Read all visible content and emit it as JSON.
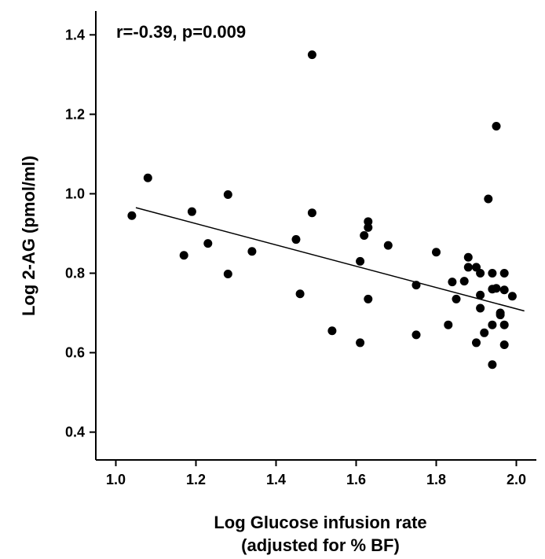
{
  "chart_data": {
    "type": "scatter",
    "annotation": "r=-0.39, p=0.009",
    "xlabel_line1": "Log Glucose infusion rate",
    "xlabel_line2": "(adjusted for % BF)",
    "ylabel": "Log 2-AG (pmol/ml)",
    "xlim": [
      0.95,
      2.05
    ],
    "ylim": [
      0.33,
      1.46
    ],
    "x_ticks": [
      {
        "value": 1.0,
        "label": "1.0"
      },
      {
        "value": 1.2,
        "label": "1.2"
      },
      {
        "value": 1.4,
        "label": "1.4"
      },
      {
        "value": 1.6,
        "label": "1.6"
      },
      {
        "value": 1.8,
        "label": "1.8"
      },
      {
        "value": 2.0,
        "label": "2.0"
      }
    ],
    "y_ticks": [
      {
        "value": 0.4,
        "label": "0.4"
      },
      {
        "value": 0.6,
        "label": "0.6"
      },
      {
        "value": 0.8,
        "label": "0.8"
      },
      {
        "value": 1.0,
        "label": "1.0"
      },
      {
        "value": 1.2,
        "label": "1.2"
      },
      {
        "value": 1.4,
        "label": "1.4"
      }
    ],
    "grid": false,
    "trendline": {
      "x": [
        1.05,
        2.02
      ],
      "y": [
        0.965,
        0.705
      ]
    },
    "points": [
      {
        "x": 1.04,
        "y": 0.945
      },
      {
        "x": 1.08,
        "y": 1.04
      },
      {
        "x": 1.17,
        "y": 0.845
      },
      {
        "x": 1.19,
        "y": 0.955
      },
      {
        "x": 1.23,
        "y": 0.875
      },
      {
        "x": 1.28,
        "y": 0.998
      },
      {
        "x": 1.28,
        "y": 0.798
      },
      {
        "x": 1.34,
        "y": 0.855
      },
      {
        "x": 1.45,
        "y": 0.885
      },
      {
        "x": 1.46,
        "y": 0.748
      },
      {
        "x": 1.49,
        "y": 1.35
      },
      {
        "x": 1.49,
        "y": 0.952
      },
      {
        "x": 1.54,
        "y": 0.655
      },
      {
        "x": 1.61,
        "y": 0.625
      },
      {
        "x": 1.61,
        "y": 0.83
      },
      {
        "x": 1.62,
        "y": 0.895
      },
      {
        "x": 1.63,
        "y": 0.915
      },
      {
        "x": 1.63,
        "y": 0.93
      },
      {
        "x": 1.63,
        "y": 0.735
      },
      {
        "x": 1.68,
        "y": 0.87
      },
      {
        "x": 1.75,
        "y": 0.77
      },
      {
        "x": 1.75,
        "y": 0.645
      },
      {
        "x": 1.8,
        "y": 0.853
      },
      {
        "x": 1.83,
        "y": 0.67
      },
      {
        "x": 1.84,
        "y": 0.778
      },
      {
        "x": 1.85,
        "y": 0.735
      },
      {
        "x": 1.87,
        "y": 0.78
      },
      {
        "x": 1.88,
        "y": 0.84
      },
      {
        "x": 1.88,
        "y": 0.815
      },
      {
        "x": 1.9,
        "y": 0.815
      },
      {
        "x": 1.9,
        "y": 0.625
      },
      {
        "x": 1.91,
        "y": 0.8
      },
      {
        "x": 1.91,
        "y": 0.745
      },
      {
        "x": 1.91,
        "y": 0.712
      },
      {
        "x": 1.92,
        "y": 0.65
      },
      {
        "x": 1.93,
        "y": 0.987
      },
      {
        "x": 1.94,
        "y": 0.8
      },
      {
        "x": 1.94,
        "y": 0.76
      },
      {
        "x": 1.94,
        "y": 0.67
      },
      {
        "x": 1.94,
        "y": 0.57
      },
      {
        "x": 1.95,
        "y": 1.17
      },
      {
        "x": 1.95,
        "y": 0.762
      },
      {
        "x": 1.96,
        "y": 0.7
      },
      {
        "x": 1.96,
        "y": 0.695
      },
      {
        "x": 1.97,
        "y": 0.8
      },
      {
        "x": 1.97,
        "y": 0.758
      },
      {
        "x": 1.97,
        "y": 0.67
      },
      {
        "x": 1.97,
        "y": 0.62
      },
      {
        "x": 1.99,
        "y": 0.742
      }
    ]
  }
}
